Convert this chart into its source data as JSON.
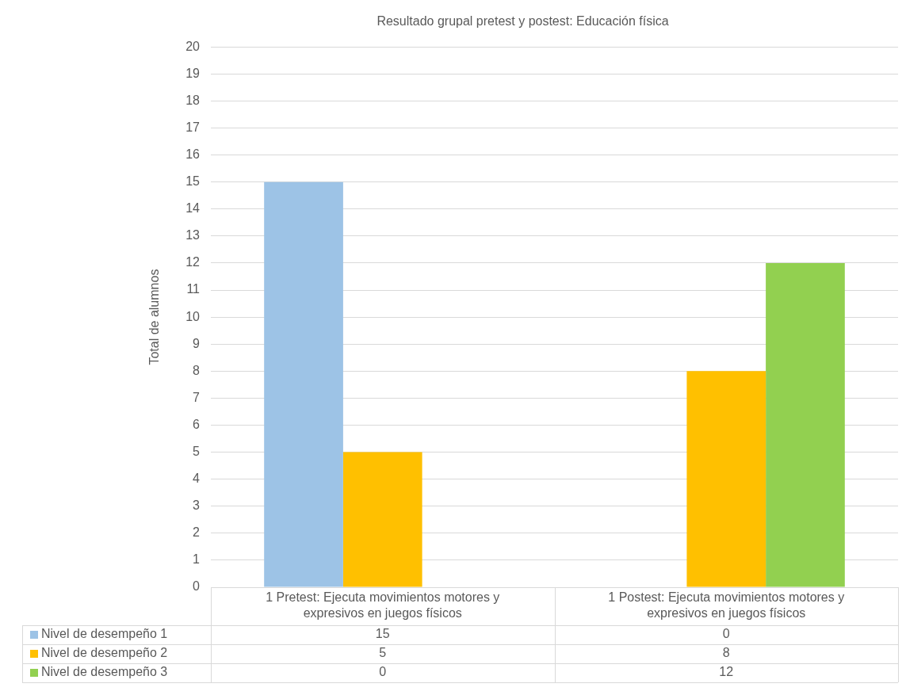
{
  "chart_data": {
    "type": "bar",
    "title": "Resultado grupal pretest y postest: Educación física",
    "ylabel": "Total de alumnos",
    "categories": [
      "1 Pretest: Ejecuta movimientos motores y expresivos en juegos físicos",
      "1 Postest: Ejecuta movimientos motores y expresivos en juegos físicos"
    ],
    "series": [
      {
        "name": "Nivel de desempeño 1",
        "color": "#9dc3e6",
        "values": [
          15,
          0
        ]
      },
      {
        "name": "Nivel de desempeño 2",
        "color": "#ffc000",
        "values": [
          5,
          8
        ]
      },
      {
        "name": "Nivel de desempeño 3",
        "color": "#92d050",
        "values": [
          0,
          12
        ]
      }
    ],
    "ylim": [
      0,
      20
    ],
    "yticks": [
      0,
      1,
      2,
      3,
      4,
      5,
      6,
      7,
      8,
      9,
      10,
      11,
      12,
      13,
      14,
      15,
      16,
      17,
      18,
      19,
      20
    ],
    "grid": "y",
    "legend": "bottom",
    "data_labels": true
  }
}
